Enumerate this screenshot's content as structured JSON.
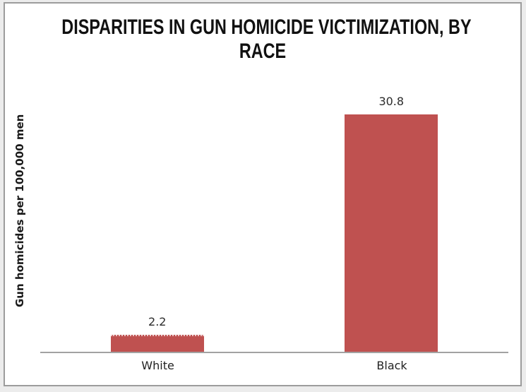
{
  "chart_data": {
    "type": "bar",
    "title": "DISPARITIES IN GUN HOMICIDE VICTIMIZATION, BY RACE",
    "title_lines": [
      "DISPARITIES IN GUN HOMICIDE VICTIMIZATION, BY",
      "RACE"
    ],
    "categories": [
      "White",
      "Black"
    ],
    "values": [
      2.2,
      30.8
    ],
    "value_labels": [
      "2.2",
      "30.8"
    ],
    "xlabel": "",
    "ylabel": "Gun homicides per 100,000 men",
    "ylim": [
      0,
      35
    ],
    "grid": false,
    "legend": false,
    "bar_color": "#bf5150",
    "axis_line_color": "#a2a2a2",
    "frame_border_color": "#9c9c9c",
    "background_color": "#ffffff",
    "page_background_color": "#ececec",
    "title_color": "#111111",
    "label_color": "#2b2b2b"
  }
}
